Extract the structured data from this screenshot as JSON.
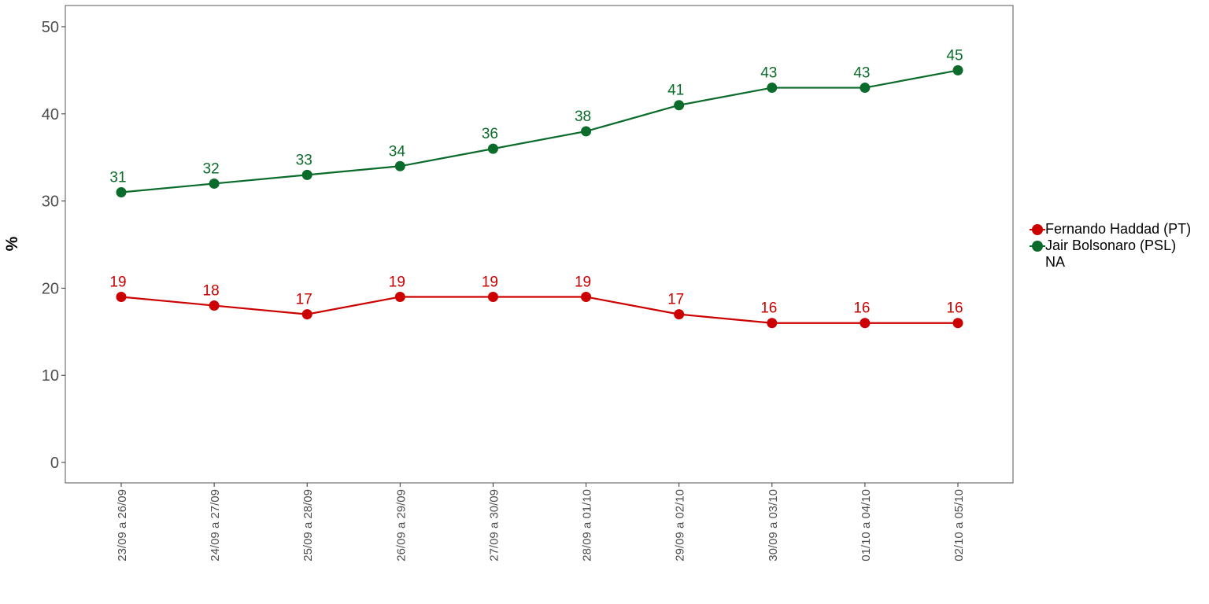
{
  "chart_data": {
    "type": "line",
    "title": "",
    "xlabel": "",
    "ylabel": "%",
    "ylim": [
      0,
      50
    ],
    "y_ticks": [
      0,
      10,
      20,
      30,
      40,
      50
    ],
    "categories": [
      "23/09 a 26/09",
      "24/09 a 27/09",
      "25/09 a 28/09",
      "26/09 a 29/09",
      "27/09 a 30/09",
      "28/09 a 01/10",
      "29/09 a 02/10",
      "30/09 a 03/10",
      "01/10 a 04/10",
      "02/10 a 05/10"
    ],
    "series": [
      {
        "name": "Fernando Haddad (PT)",
        "color": "#cc0000",
        "values": [
          19,
          18,
          17,
          19,
          19,
          19,
          17,
          16,
          16,
          16
        ]
      },
      {
        "name": "Jair Bolsonaro (PSL)",
        "color": "#0a6b2a",
        "values": [
          31,
          32,
          33,
          34,
          36,
          38,
          41,
          43,
          43,
          45
        ]
      }
    ],
    "legend": {
      "position": "right",
      "extra_entry": "NA"
    },
    "grid": false
  }
}
